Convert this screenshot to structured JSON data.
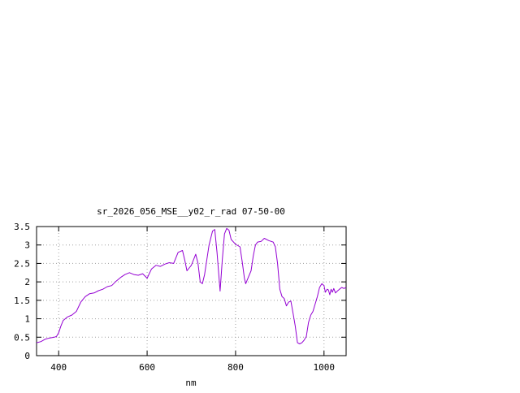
{
  "chart_data": {
    "type": "line",
    "title": "sr_2026_056_MSE__y02_r_rad 07-50-00",
    "xlabel": "nm",
    "ylabel": "",
    "xlim": [
      350,
      1050
    ],
    "ylim": [
      0,
      3.5
    ],
    "grid": true,
    "x_ticks": [
      400,
      600,
      800,
      1000
    ],
    "x_tick_labels": [
      "400",
      "600",
      "800",
      "1000"
    ],
    "y_ticks": [
      0,
      0.5,
      1,
      1.5,
      2,
      2.5,
      3,
      3.5
    ],
    "y_tick_labels": [
      "0",
      "0.5",
      "1",
      "1.5",
      "2",
      "2.5",
      "3",
      "3.5"
    ],
    "series": [
      {
        "color": "#9400d3",
        "points": [
          [
            350,
            0.35
          ],
          [
            360,
            0.38
          ],
          [
            370,
            0.45
          ],
          [
            380,
            0.48
          ],
          [
            390,
            0.5
          ],
          [
            395,
            0.52
          ],
          [
            400,
            0.62
          ],
          [
            405,
            0.8
          ],
          [
            410,
            0.95
          ],
          [
            420,
            1.05
          ],
          [
            430,
            1.1
          ],
          [
            440,
            1.2
          ],
          [
            450,
            1.45
          ],
          [
            460,
            1.6
          ],
          [
            470,
            1.68
          ],
          [
            480,
            1.7
          ],
          [
            490,
            1.76
          ],
          [
            500,
            1.8
          ],
          [
            510,
            1.87
          ],
          [
            520,
            1.9
          ],
          [
            530,
            2.02
          ],
          [
            540,
            2.12
          ],
          [
            550,
            2.2
          ],
          [
            560,
            2.25
          ],
          [
            570,
            2.2
          ],
          [
            580,
            2.18
          ],
          [
            590,
            2.22
          ],
          [
            600,
            2.1
          ],
          [
            610,
            2.35
          ],
          [
            620,
            2.45
          ],
          [
            630,
            2.42
          ],
          [
            640,
            2.48
          ],
          [
            650,
            2.52
          ],
          [
            660,
            2.5
          ],
          [
            670,
            2.8
          ],
          [
            680,
            2.85
          ],
          [
            685,
            2.6
          ],
          [
            690,
            2.3
          ],
          [
            700,
            2.45
          ],
          [
            710,
            2.75
          ],
          [
            715,
            2.5
          ],
          [
            720,
            2.0
          ],
          [
            725,
            1.95
          ],
          [
            730,
            2.2
          ],
          [
            740,
            3.0
          ],
          [
            748,
            3.38
          ],
          [
            753,
            3.42
          ],
          [
            758,
            2.8
          ],
          [
            765,
            1.75
          ],
          [
            770,
            2.6
          ],
          [
            775,
            3.3
          ],
          [
            780,
            3.45
          ],
          [
            785,
            3.4
          ],
          [
            790,
            3.15
          ],
          [
            800,
            3.02
          ],
          [
            810,
            2.95
          ],
          [
            815,
            2.55
          ],
          [
            820,
            2.1
          ],
          [
            823,
            1.95
          ],
          [
            828,
            2.1
          ],
          [
            835,
            2.3
          ],
          [
            840,
            2.7
          ],
          [
            845,
            3.0
          ],
          [
            850,
            3.08
          ],
          [
            858,
            3.1
          ],
          [
            865,
            3.18
          ],
          [
            875,
            3.12
          ],
          [
            885,
            3.08
          ],
          [
            890,
            2.95
          ],
          [
            895,
            2.5
          ],
          [
            900,
            1.8
          ],
          [
            905,
            1.6
          ],
          [
            910,
            1.55
          ],
          [
            915,
            1.35
          ],
          [
            920,
            1.45
          ],
          [
            925,
            1.48
          ],
          [
            930,
            1.15
          ],
          [
            935,
            0.8
          ],
          [
            940,
            0.35
          ],
          [
            945,
            0.32
          ],
          [
            950,
            0.35
          ],
          [
            955,
            0.42
          ],
          [
            960,
            0.52
          ],
          [
            965,
            0.9
          ],
          [
            970,
            1.1
          ],
          [
            975,
            1.2
          ],
          [
            980,
            1.4
          ],
          [
            985,
            1.6
          ],
          [
            990,
            1.85
          ],
          [
            995,
            1.95
          ],
          [
            1000,
            1.9
          ],
          [
            1003,
            1.72
          ],
          [
            1007,
            1.8
          ],
          [
            1010,
            1.78
          ],
          [
            1013,
            1.65
          ],
          [
            1016,
            1.8
          ],
          [
            1019,
            1.72
          ],
          [
            1022,
            1.82
          ],
          [
            1026,
            1.7
          ],
          [
            1030,
            1.75
          ],
          [
            1035,
            1.8
          ],
          [
            1040,
            1.85
          ],
          [
            1045,
            1.82
          ],
          [
            1050,
            1.85
          ]
        ]
      }
    ]
  }
}
